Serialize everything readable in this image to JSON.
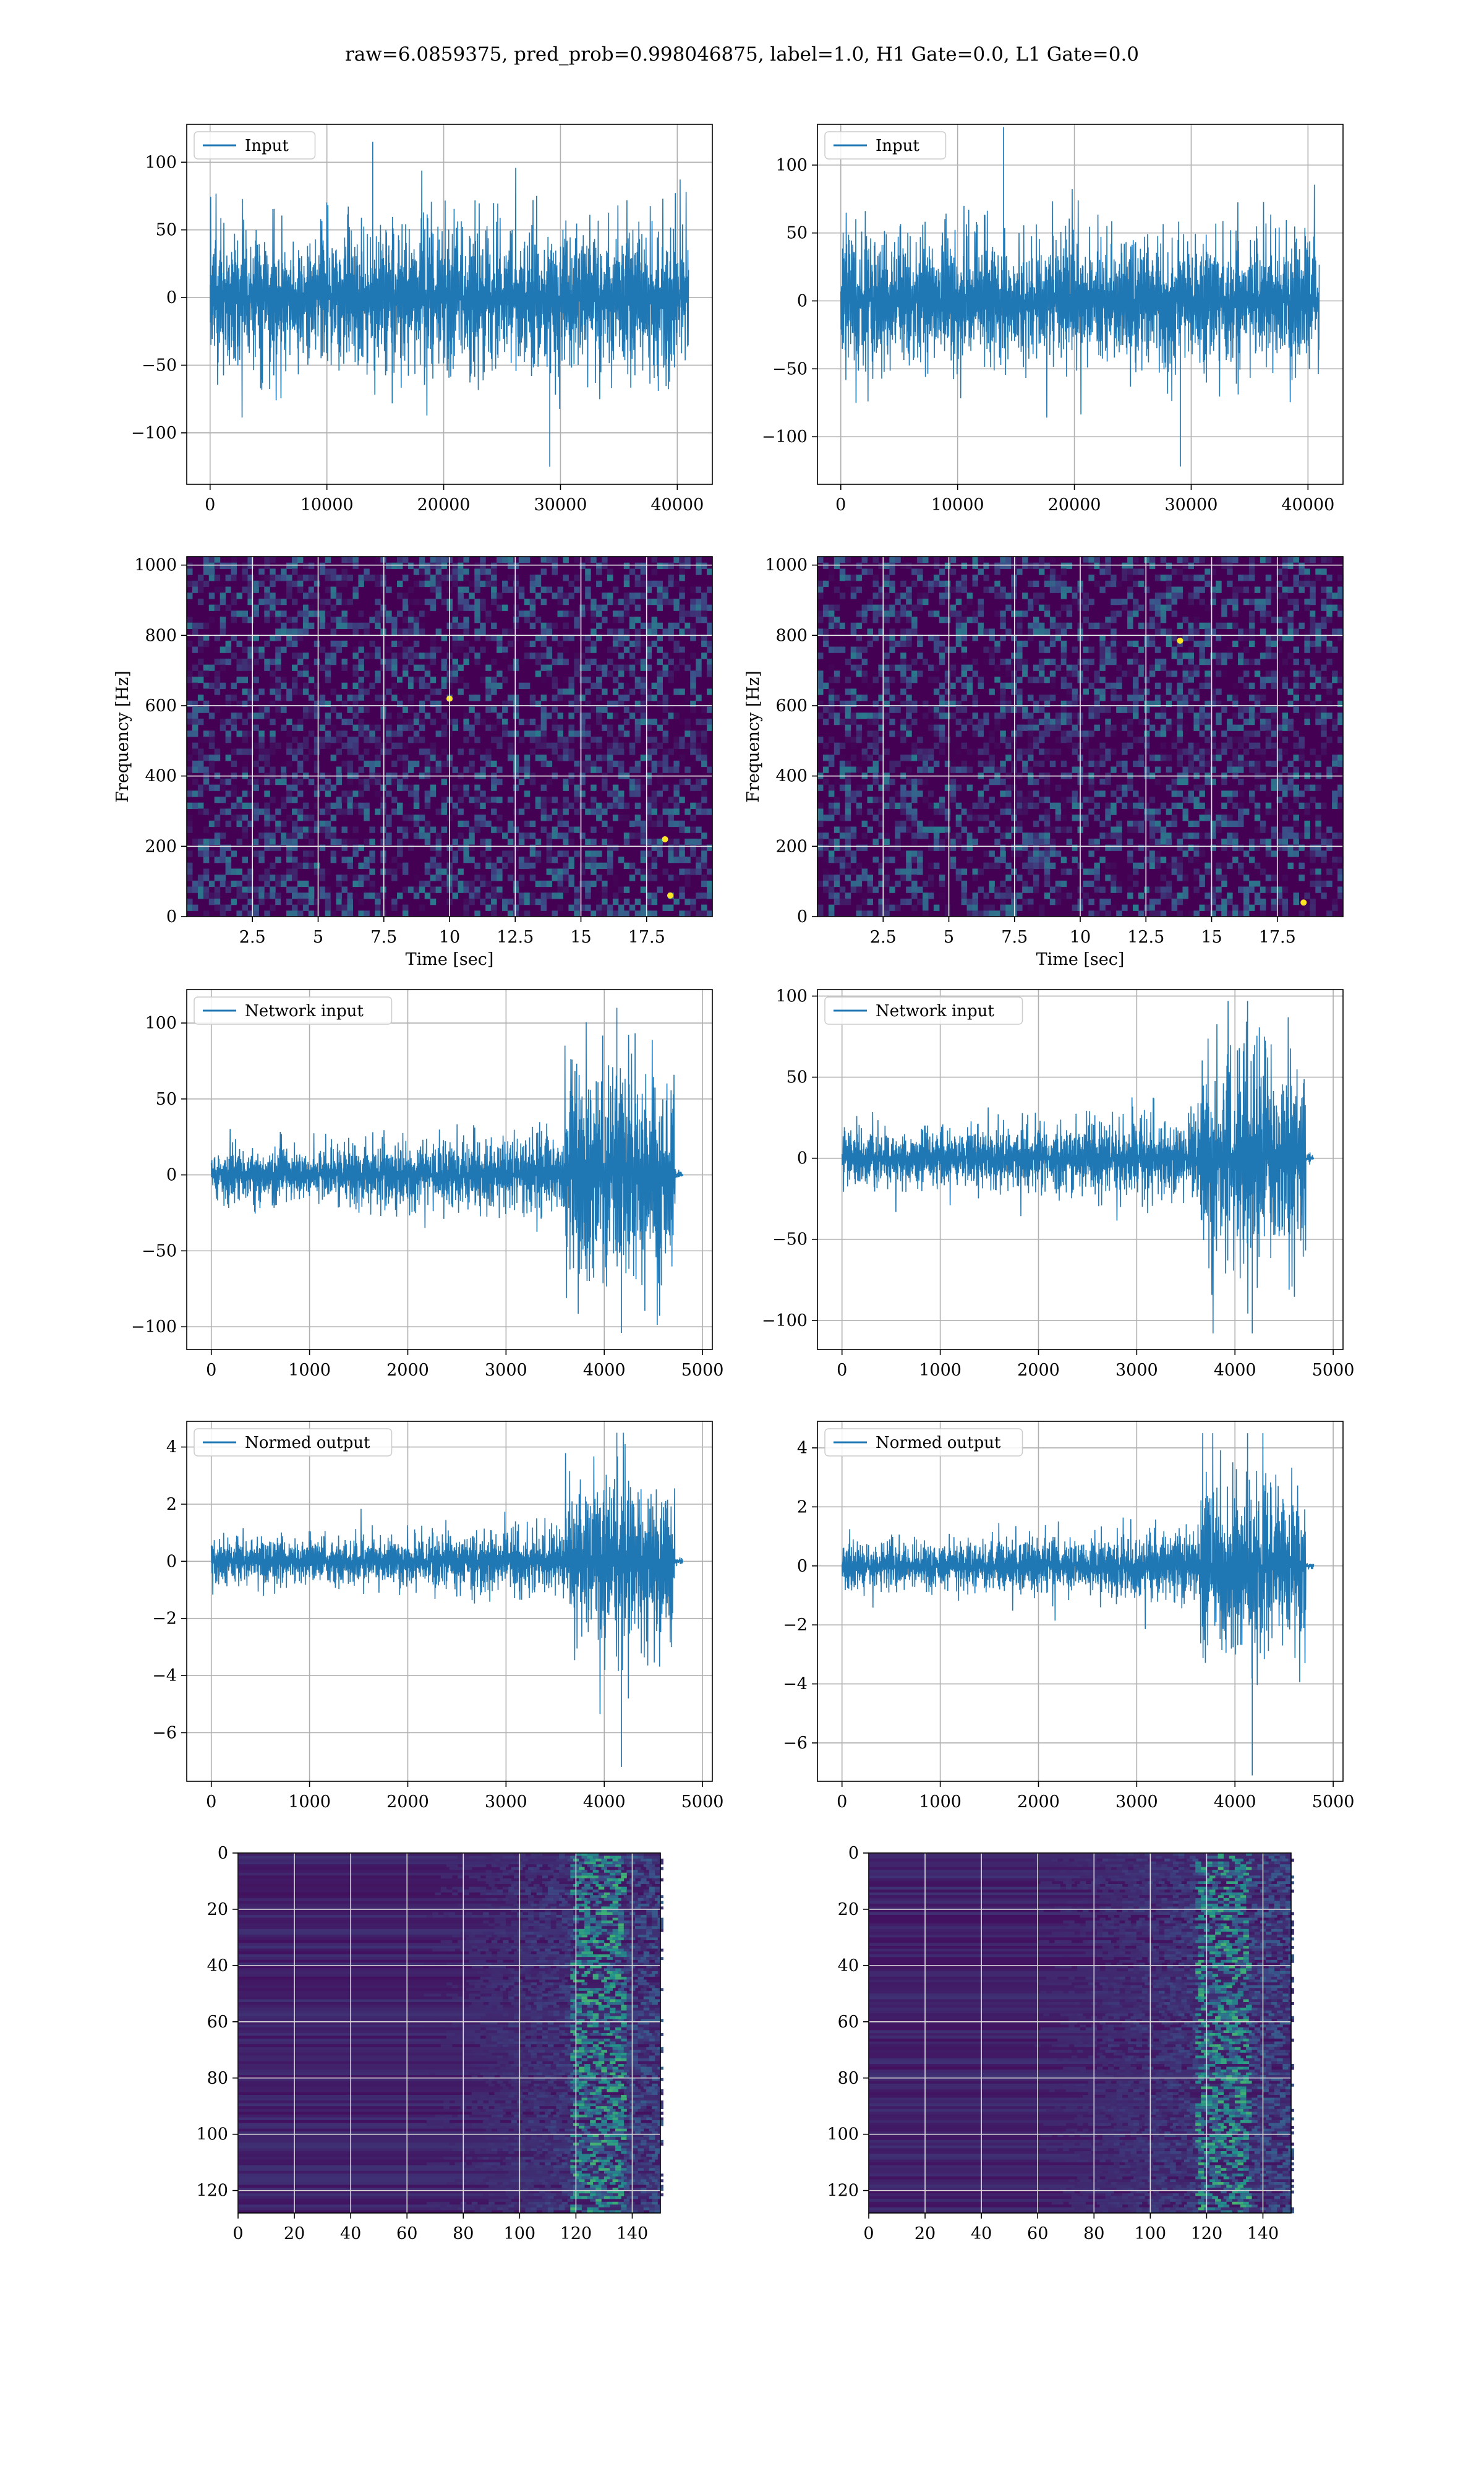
{
  "figure": {
    "title": "raw=6.0859375, pred_prob=0.998046875, label=1.0, H1 Gate=0.0, L1 Gate=0.0"
  },
  "colors": {
    "series": "#1f77b4",
    "grid": "#b0b0b0",
    "viridis_low": "#440154",
    "viridis_mid": "#21918c",
    "viridis_high": "#fde725"
  },
  "chart_data": [
    {
      "id": "row1-left",
      "type": "line",
      "title": "",
      "xlabel": "",
      "ylabel": "",
      "legend": {
        "labels": [
          "Input"
        ],
        "placement": "upper-left"
      },
      "grid": true,
      "xlim": [
        -2000,
        43000
      ],
      "ylim": [
        -138,
        128
      ],
      "xticks": [
        0,
        10000,
        20000,
        30000,
        40000
      ],
      "yticks": [
        -100,
        -50,
        0,
        50,
        100
      ],
      "series": [
        {
          "name": "Input",
          "x_range": [
            0,
            40960
          ],
          "envelope": [
            -70,
            70
          ],
          "peak_max": 115,
          "peak_min": -125
        }
      ]
    },
    {
      "id": "row1-right",
      "type": "line",
      "title": "",
      "xlabel": "",
      "ylabel": "",
      "legend": {
        "labels": [
          "Input"
        ],
        "placement": "upper-left"
      },
      "grid": true,
      "xlim": [
        -2000,
        43000
      ],
      "ylim": [
        -135,
        130
      ],
      "xticks": [
        0,
        10000,
        20000,
        30000,
        40000
      ],
      "yticks": [
        -100,
        -50,
        0,
        50,
        100
      ],
      "series": [
        {
          "name": "Input",
          "x_range": [
            0,
            40960
          ],
          "envelope": [
            -62,
            62
          ],
          "peak_max": 128,
          "peak_min": -122
        }
      ]
    },
    {
      "id": "row2-left",
      "type": "heatmap",
      "title": "",
      "xlabel": "Time [sec]",
      "ylabel": "Frequency [Hz]",
      "grid": true,
      "xlim": [
        0,
        20
      ],
      "ylim": [
        0,
        1024
      ],
      "xticks": [
        2.5,
        5.0,
        7.5,
        10.0,
        12.5,
        15.0,
        17.5
      ],
      "yticks": [
        0,
        200,
        400,
        600,
        800,
        1000
      ],
      "colormap": "viridis",
      "hotspots": [
        {
          "t": 18.2,
          "f": 220
        },
        {
          "t": 18.4,
          "f": 60
        },
        {
          "t": 10.0,
          "f": 620
        }
      ]
    },
    {
      "id": "row2-right",
      "type": "heatmap",
      "title": "",
      "xlabel": "Time [sec]",
      "ylabel": "Frequency [Hz]",
      "grid": true,
      "xlim": [
        0,
        20
      ],
      "ylim": [
        0,
        1024
      ],
      "xticks": [
        2.5,
        5.0,
        7.5,
        10.0,
        12.5,
        15.0,
        17.5
      ],
      "yticks": [
        0,
        200,
        400,
        600,
        800,
        1000
      ],
      "colormap": "viridis",
      "hotspots": [
        {
          "t": 13.8,
          "f": 785
        },
        {
          "t": 18.5,
          "f": 40
        }
      ]
    },
    {
      "id": "row3-left",
      "type": "line",
      "title": "",
      "xlabel": "",
      "ylabel": "",
      "legend": {
        "labels": [
          "Network input"
        ],
        "placement": "upper-left"
      },
      "grid": true,
      "xlim": [
        -250,
        5100
      ],
      "ylim": [
        -115,
        122
      ],
      "xticks": [
        0,
        1000,
        2000,
        3000,
        4000,
        5000
      ],
      "yticks": [
        -100,
        -50,
        0,
        50,
        100
      ],
      "series": [
        {
          "name": "Network input",
          "x_range": [
            0,
            4800
          ],
          "quiet_amp": 13,
          "burst_start": 3600,
          "burst_end": 4720,
          "burst_amp": 85,
          "peak_max": 110,
          "peak_min": -104
        }
      ]
    },
    {
      "id": "row3-right",
      "type": "line",
      "title": "",
      "xlabel": "",
      "ylabel": "",
      "legend": {
        "labels": [
          "Network input"
        ],
        "placement": "upper-left"
      },
      "grid": true,
      "xlim": [
        -250,
        5100
      ],
      "ylim": [
        -118,
        104
      ],
      "xticks": [
        0,
        1000,
        2000,
        3000,
        4000,
        5000
      ],
      "yticks": [
        -100,
        -50,
        0,
        50,
        100
      ],
      "series": [
        {
          "name": "Network input",
          "x_range": [
            0,
            4800
          ],
          "quiet_amp": 12,
          "burst_start": 3650,
          "burst_end": 4720,
          "burst_amp": 78,
          "peak_max": 97,
          "peak_min": -108
        }
      ]
    },
    {
      "id": "row4-left",
      "type": "line",
      "title": "",
      "xlabel": "",
      "ylabel": "",
      "legend": {
        "labels": [
          "Normed output"
        ],
        "placement": "upper-left"
      },
      "grid": true,
      "xlim": [
        -250,
        5100
      ],
      "ylim": [
        -7.7,
        4.9
      ],
      "xticks": [
        0,
        1000,
        2000,
        3000,
        4000,
        5000
      ],
      "yticks": [
        -6,
        -4,
        -2,
        0,
        2,
        4
      ],
      "series": [
        {
          "name": "Normed output",
          "x_range": [
            0,
            4800
          ],
          "quiet_amp": 0.55,
          "burst_start": 3600,
          "burst_end": 4720,
          "burst_amp": 3.6,
          "peak_max": 4.5,
          "peak_min": -7.2
        }
      ]
    },
    {
      "id": "row4-right",
      "type": "line",
      "title": "",
      "xlabel": "",
      "ylabel": "",
      "legend": {
        "labels": [
          "Normed output"
        ],
        "placement": "upper-left"
      },
      "grid": true,
      "xlim": [
        -250,
        5100
      ],
      "ylim": [
        -7.3,
        4.9
      ],
      "xticks": [
        0,
        1000,
        2000,
        3000,
        4000,
        5000
      ],
      "yticks": [
        -6,
        -4,
        -2,
        0,
        2,
        4
      ],
      "series": [
        {
          "name": "Normed output",
          "x_range": [
            0,
            4800
          ],
          "quiet_amp": 0.55,
          "burst_start": 3650,
          "burst_end": 4720,
          "burst_amp": 3.4,
          "peak_max": 4.5,
          "peak_min": -7.1
        }
      ]
    },
    {
      "id": "row5-left",
      "type": "heatmap",
      "title": "",
      "xlabel": "",
      "ylabel": "",
      "grid": true,
      "xlim": [
        0,
        150
      ],
      "ylim": [
        128,
        0
      ],
      "y_inverted": true,
      "xticks": [
        0,
        20,
        40,
        60,
        80,
        100,
        120,
        140
      ],
      "yticks": [
        0,
        20,
        40,
        60,
        80,
        100,
        120
      ],
      "colormap": "viridis",
      "rows": 128,
      "cols": 150,
      "activity": {
        "onset_col": 95,
        "bright_col_start": 118,
        "bright_col_end": 136
      }
    },
    {
      "id": "row5-right",
      "type": "heatmap",
      "title": "",
      "xlabel": "",
      "ylabel": "",
      "grid": true,
      "xlim": [
        0,
        150
      ],
      "ylim": [
        128,
        0
      ],
      "y_inverted": true,
      "xticks": [
        0,
        20,
        40,
        60,
        80,
        100,
        120,
        140
      ],
      "yticks": [
        0,
        20,
        40,
        60,
        80,
        100,
        120
      ],
      "colormap": "viridis",
      "rows": 128,
      "cols": 150,
      "activity": {
        "onset_col": 88,
        "bright_col_start": 116,
        "bright_col_end": 134
      }
    }
  ]
}
